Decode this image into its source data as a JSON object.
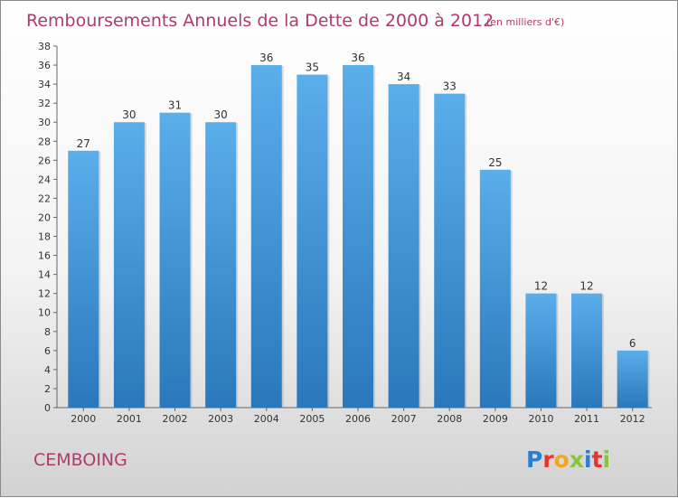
{
  "chart_data": {
    "type": "bar",
    "title": "Remboursements Annuels de la Dette de 2000 à 2012",
    "subtitle": "(en milliers d'€)",
    "categories": [
      "2000",
      "2001",
      "2002",
      "2003",
      "2004",
      "2005",
      "2006",
      "2007",
      "2008",
      "2009",
      "2010",
      "2011",
      "2012"
    ],
    "values": [
      27,
      30,
      31,
      30,
      36,
      35,
      36,
      34,
      33,
      25,
      12,
      12,
      6
    ],
    "ylim": [
      0,
      38
    ],
    "yticks": [
      0,
      2,
      4,
      6,
      8,
      10,
      12,
      14,
      16,
      18,
      20,
      22,
      24,
      26,
      28,
      30,
      32,
      34,
      36,
      38
    ],
    "grid": false,
    "legend": "none",
    "colors": {
      "bar_top": "#5aaeea",
      "bar_bottom": "#2a78bb",
      "title": "#b03a6a"
    }
  },
  "footer": {
    "commune": "CEMBOING",
    "logo_letters": [
      "P",
      "r",
      "o",
      "x",
      "i",
      "t",
      "i"
    ],
    "logo_colors": [
      "#2a7fd4",
      "#e8322c",
      "#f2a51e",
      "#8ac43f",
      "#2a7fd4",
      "#e8322c",
      "#8ac43f"
    ]
  }
}
